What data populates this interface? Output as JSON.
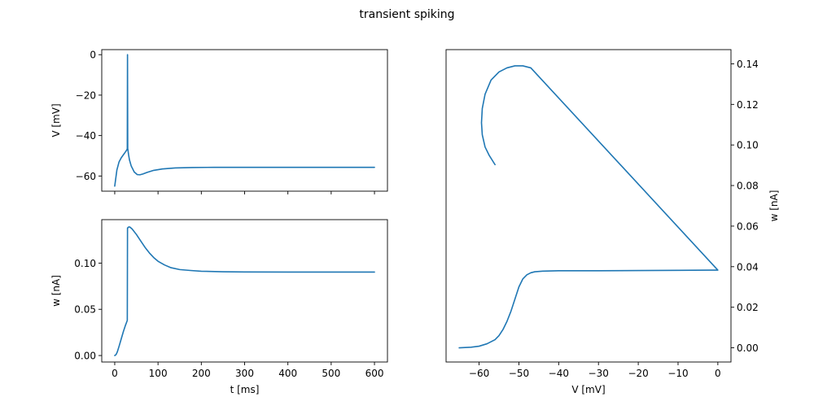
{
  "title": "transient spiking",
  "colors": {
    "series": "#1f77b4"
  },
  "chart_data": [
    {
      "type": "line",
      "id": "voltage",
      "xlabel": "",
      "ylabel": "V [mV]",
      "xlim": [
        -30,
        630
      ],
      "ylim": [
        -67.5,
        2.5
      ],
      "xticks": [
        0,
        100,
        200,
        300,
        400,
        500,
        600
      ],
      "xtick_labels_visible": false,
      "yticks": [
        0,
        -20,
        -40,
        -60
      ],
      "ytick_labels": [
        "0",
        "−20",
        "−40",
        "−60"
      ],
      "series": [
        {
          "x": [
            0,
            5,
            10,
            15,
            20,
            25,
            28,
            29,
            29.5,
            30,
            30.5,
            31,
            32,
            34,
            38,
            45,
            52,
            58,
            65,
            75,
            90,
            110,
            140,
            180,
            230,
            300,
            400,
            500,
            600
          ],
          "y": [
            -65,
            -57,
            -53,
            -51,
            -49.5,
            -48,
            -47,
            -46.5,
            0,
            -46.5,
            -47,
            -48,
            -49.5,
            -52,
            -55,
            -58,
            -59.3,
            -59.4,
            -59,
            -58.2,
            -57.2,
            -56.5,
            -56,
            -55.8,
            -55.7,
            -55.7,
            -55.7,
            -55.7,
            -55.7
          ]
        }
      ]
    },
    {
      "type": "line",
      "id": "adaptation",
      "xlabel": "t [ms]",
      "ylabel": "w [nA]",
      "xlim": [
        -30,
        630
      ],
      "ylim": [
        -0.007,
        0.147
      ],
      "xticks": [
        0,
        100,
        200,
        300,
        400,
        500,
        600
      ],
      "xtick_labels": [
        "0",
        "100",
        "200",
        "300",
        "400",
        "500",
        "600"
      ],
      "yticks": [
        0.0,
        0.05,
        0.1
      ],
      "ytick_labels": [
        "0.00",
        "0.05",
        "0.10"
      ],
      "series": [
        {
          "x": [
            0,
            3,
            6,
            10,
            15,
            20,
            25,
            29,
            29.5,
            30,
            32,
            35,
            40,
            50,
            60,
            70,
            80,
            90,
            100,
            115,
            130,
            150,
            175,
            200,
            250,
            300,
            400,
            500,
            600
          ],
          "y": [
            0.0,
            0.001,
            0.004,
            0.01,
            0.018,
            0.026,
            0.033,
            0.038,
            0.138,
            0.138,
            0.139,
            0.139,
            0.137,
            0.131,
            0.124,
            0.117,
            0.111,
            0.106,
            0.102,
            0.098,
            0.095,
            0.093,
            0.092,
            0.0912,
            0.0906,
            0.0904,
            0.0903,
            0.0903,
            0.0903
          ]
        }
      ]
    },
    {
      "type": "line",
      "id": "phase-plane",
      "xlabel": "V [mV]",
      "ylabel": "w [nA]",
      "xlim": [
        -68.3,
        3.3
      ],
      "ylim": [
        -0.007,
        0.147
      ],
      "xticks": [
        -60,
        -50,
        -40,
        -30,
        -20,
        -10,
        0
      ],
      "xtick_labels": [
        "−60",
        "−50",
        "−40",
        "−30",
        "−20",
        "−10",
        "0"
      ],
      "yticks": [
        0.0,
        0.02,
        0.04,
        0.06,
        0.08,
        0.1,
        0.12,
        0.14
      ],
      "ytick_labels": [
        "0.00",
        "0.02",
        "0.04",
        "0.06",
        "0.08",
        "0.10",
        "0.12",
        "0.14"
      ],
      "yaxis_side": "right",
      "series": [
        {
          "x": [
            -65,
            -62,
            -60,
            -58,
            -56,
            -55,
            -54,
            -53,
            -52,
            -51,
            -50,
            -49,
            -48,
            -47,
            -46,
            -44,
            -40,
            -30,
            -20,
            -10,
            -2,
            0,
            -47,
            -49,
            -51,
            -53,
            -55,
            -57,
            -58.5,
            -59.2,
            -59.4,
            -59.2,
            -58.5,
            -57.5,
            -56
          ],
          "y": [
            0.0,
            0.0003,
            0.0008,
            0.002,
            0.004,
            0.006,
            0.009,
            0.013,
            0.018,
            0.024,
            0.03,
            0.034,
            0.036,
            0.037,
            0.0375,
            0.0378,
            0.038,
            0.038,
            0.0381,
            0.0382,
            0.0383,
            0.0383,
            0.138,
            0.139,
            0.139,
            0.138,
            0.136,
            0.132,
            0.125,
            0.118,
            0.111,
            0.105,
            0.099,
            0.095,
            0.0903
          ]
        }
      ]
    }
  ]
}
